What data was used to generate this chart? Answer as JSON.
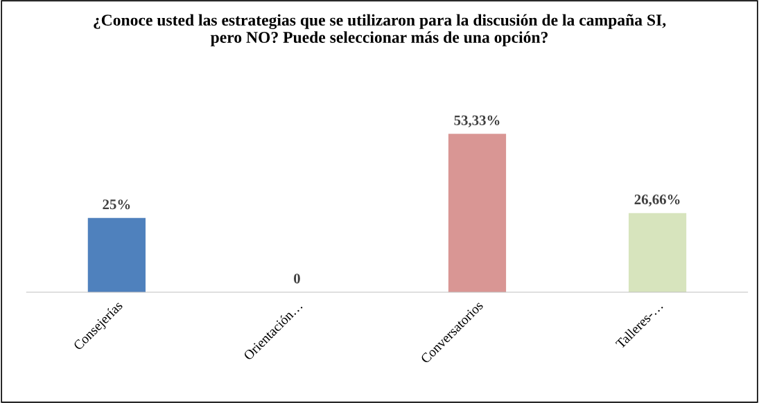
{
  "chart_data": {
    "type": "bar",
    "title": "¿Conoce usted las estrategias que se utilizaron para la discusión de la campaña SI, pero NO? Puede seleccionar más de una opción?",
    "categories": [
      "Consejerías",
      "Orientación…",
      "Conversatorios",
      "Talleres-…"
    ],
    "values": [
      25,
      0,
      53.33,
      26.66
    ],
    "colors": [
      "#4f81bd",
      "#c0504d",
      "#d99694",
      "#d7e4bd"
    ],
    "value_labels": [
      "25%",
      "0",
      "53,33%",
      "26,66%"
    ],
    "grid": false,
    "legend": false
  }
}
